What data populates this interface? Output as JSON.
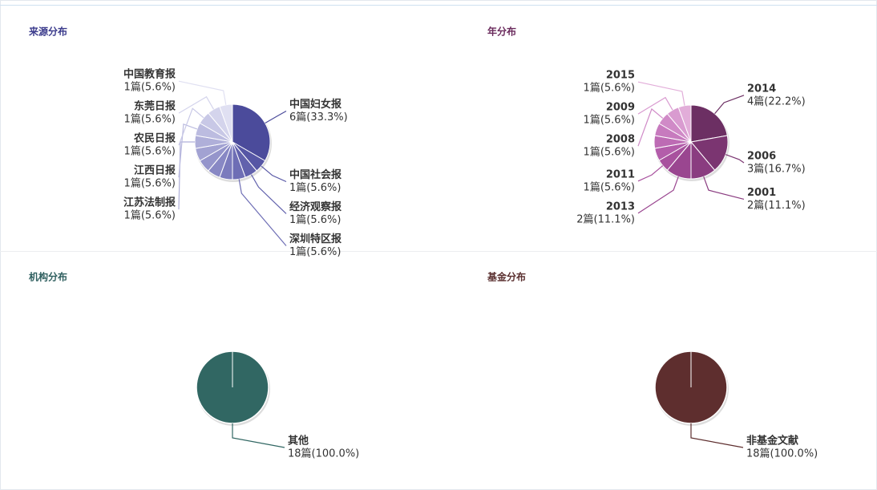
{
  "chart_data": [
    {
      "type": "pie",
      "title": "来源分布",
      "title_color": "#3b3b8c",
      "categories": [
        "中国妇女报",
        "中国社会报",
        "经济观察报",
        "深圳特区报",
        null,
        null,
        null,
        null,
        "江苏法制报",
        "江西日报",
        "农民日报",
        "东莞日报",
        "中国教育报"
      ],
      "values": [
        6,
        1,
        1,
        1,
        1,
        1,
        1,
        1,
        1,
        1,
        1,
        1,
        1
      ],
      "value_labels": [
        "6篇(33.3%)",
        "1篇(5.6%)",
        "1篇(5.6%)",
        "1篇(5.6%)",
        null,
        null,
        null,
        null,
        "1篇(5.6%)",
        "1篇(5.6%)",
        "1篇(5.6%)",
        "1篇(5.6%)",
        "1篇(5.6%)"
      ],
      "colors": [
        "#4b4b9b",
        "#5656a5",
        "#6262ad",
        "#6e6eb5",
        "#7b7bbd",
        "#8888c4",
        "#9595cb",
        "#a2a2d2",
        "#afafd9",
        "#bcbce0",
        "#c8c8e6",
        "#d4d4ec",
        "#e0e0f2"
      ]
    },
    {
      "type": "pie",
      "title": "年分布",
      "title_color": "#6a2a5c",
      "categories": [
        "2014",
        "2006",
        "2001",
        "2013",
        "2011",
        null,
        null,
        null,
        "2008",
        "2009",
        "2015"
      ],
      "values": [
        4,
        3,
        2,
        2,
        1,
        1,
        1,
        1,
        1,
        1,
        1
      ],
      "value_labels": [
        "4篇(22.2%)",
        "3篇(16.7%)",
        "2篇(11.1%)",
        "2篇(11.1%)",
        "1篇(5.6%)",
        null,
        null,
        null,
        "1篇(5.6%)",
        "1篇(5.6%)",
        "1篇(5.6%)"
      ],
      "colors": [
        "#6c2f63",
        "#7b3571",
        "#8a3c80",
        "#9a4690",
        "#a8519e",
        "#b35daa",
        "#bd6bb4",
        "#c77abe",
        "#d08ac7",
        "#d99bd0",
        "#e2add9"
      ]
    },
    {
      "type": "pie",
      "title": "机构分布",
      "title_color": "#2f5f5f",
      "categories": [
        "其他"
      ],
      "values": [
        18
      ],
      "value_labels": [
        "18篇(100.0%)"
      ],
      "colors": [
        "#316763"
      ]
    },
    {
      "type": "pie",
      "title": "基金分布",
      "title_color": "#5a2f2f",
      "categories": [
        "非基金文献"
      ],
      "values": [
        18
      ],
      "value_labels": [
        "18篇(100.0%)"
      ],
      "colors": [
        "#5e2e2e"
      ]
    }
  ]
}
